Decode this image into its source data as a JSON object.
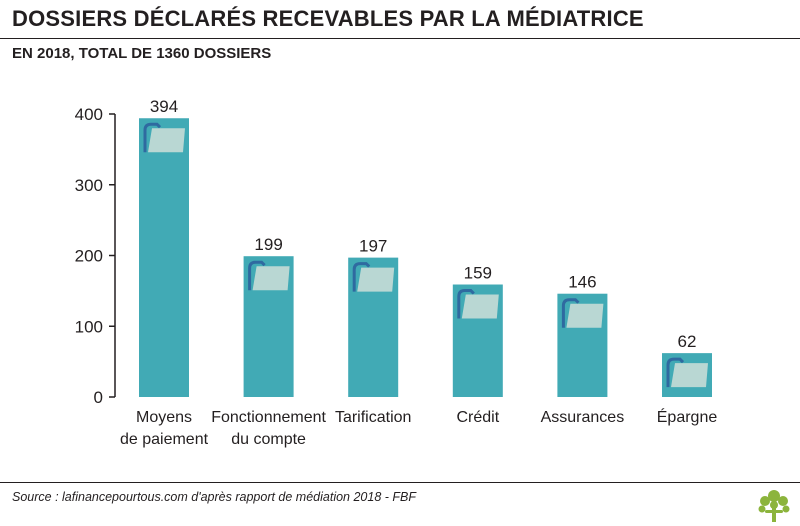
{
  "header": {
    "title": "DOSSIERS DÉCLARÉS RECEVABLES PAR LA MÉDIATRICE",
    "subtitle": "EN 2018, TOTAL DE 1360 DOSSIERS"
  },
  "footer": {
    "source": "Source : lafinancepourtous.com d'après rapport de médiation 2018 - FBF",
    "logo_icon": "tree-logo-icon"
  },
  "colors": {
    "bar": "#41aab5",
    "folder": "#b9d7d3",
    "folder_tab": "#2f6aa0",
    "text": "#231f20"
  },
  "chart_data": {
    "type": "bar",
    "title": "DOSSIERS DÉCLARÉS RECEVABLES PAR LA MÉDIATRICE",
    "subtitle": "EN 2018, TOTAL DE 1360 DOSSIERS",
    "categories": [
      [
        "Moyens",
        "de paiement"
      ],
      [
        "Fonctionnement",
        "du compte"
      ],
      [
        "Tarification"
      ],
      [
        "Crédit"
      ],
      [
        "Assurances"
      ],
      [
        "Épargne"
      ]
    ],
    "values": [
      394,
      199,
      197,
      159,
      146,
      62
    ],
    "data_labels": [
      "394",
      "199",
      "197",
      "159",
      "146",
      "62"
    ],
    "ylim": [
      0,
      400
    ],
    "yticks": [
      0,
      100,
      200,
      300,
      400
    ],
    "xlabel": "",
    "ylabel": "",
    "grid": false,
    "legend": "none",
    "bar_icon": "folder-icon"
  }
}
